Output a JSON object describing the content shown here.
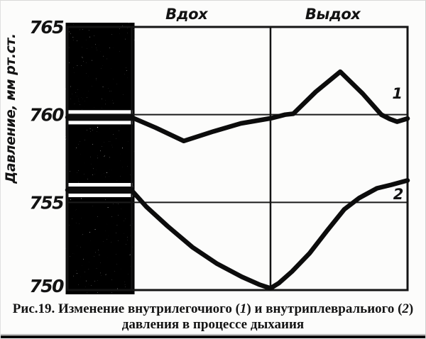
{
  "figure": {
    "caption": {
      "segments": [
        {
          "text": "Рис.19. Изменение внутрилегочиого (",
          "italic": false
        },
        {
          "text": "1",
          "italic": true
        },
        {
          "text": ") и внутриплевральиого (",
          "italic": false
        },
        {
          "text": "2",
          "italic": true
        },
        {
          "text": ")",
          "italic": false
        }
      ],
      "line2": "давления в процессе дыхаиия"
    }
  },
  "chart_data": {
    "type": "line",
    "title": "Изменение внутрилегочного (1) и внутриплеврального (2) давления в процессе дыхания",
    "ylabel": "Давление, мм рт.ст.",
    "ylim": [
      750,
      765
    ],
    "yticks": [
      {
        "value": 765,
        "label": "765"
      },
      {
        "value": 760,
        "label": "760"
      },
      {
        "value": 755,
        "label": "755"
      },
      {
        "value": 750,
        "label": "750"
      }
    ],
    "gridlines": [
      760,
      755
    ],
    "grid": "horizontal-only",
    "legend_position": "inline-right",
    "x_axis": {
      "type": "breath-phases",
      "divider_x": 0.597,
      "phases": [
        {
          "label": "Вдох",
          "label_x": 0.35
        },
        {
          "label": "Выдох",
          "label_x": 0.78
        }
      ]
    },
    "band": {
      "x_range": [
        0,
        0.188
      ],
      "style": "stipple"
    },
    "series": [
      {
        "name": "1",
        "label_x": 0.97,
        "label_pressure": 761.2,
        "points": [
          [
            0,
            759.85
          ],
          [
            0.188,
            759.85
          ],
          [
            0.26,
            759.25
          ],
          [
            0.342,
            758.5
          ],
          [
            0.43,
            759.05
          ],
          [
            0.51,
            759.5
          ],
          [
            0.6,
            759.8
          ],
          [
            0.64,
            760.0
          ],
          [
            0.664,
            760.05
          ],
          [
            0.73,
            761.3
          ],
          [
            0.802,
            762.45
          ],
          [
            0.868,
            761.2
          ],
          [
            0.923,
            760.0
          ],
          [
            0.948,
            759.75
          ],
          [
            0.969,
            759.6
          ],
          [
            1,
            759.78
          ]
        ]
      },
      {
        "name": "2",
        "label_x": 0.973,
        "label_pressure": 755.45,
        "points": [
          [
            0,
            755.7
          ],
          [
            0.188,
            755.7
          ],
          [
            0.232,
            754.75
          ],
          [
            0.294,
            753.65
          ],
          [
            0.367,
            752.45
          ],
          [
            0.44,
            751.5
          ],
          [
            0.513,
            750.75
          ],
          [
            0.566,
            750.3
          ],
          [
            0.597,
            750.1
          ],
          [
            0.622,
            750.4
          ],
          [
            0.66,
            751.05
          ],
          [
            0.712,
            752.1
          ],
          [
            0.764,
            753.4
          ],
          [
            0.814,
            754.6
          ],
          [
            0.858,
            755.25
          ],
          [
            0.91,
            755.8
          ],
          [
            0.952,
            756.0
          ],
          [
            1,
            756.25
          ]
        ]
      }
    ]
  }
}
